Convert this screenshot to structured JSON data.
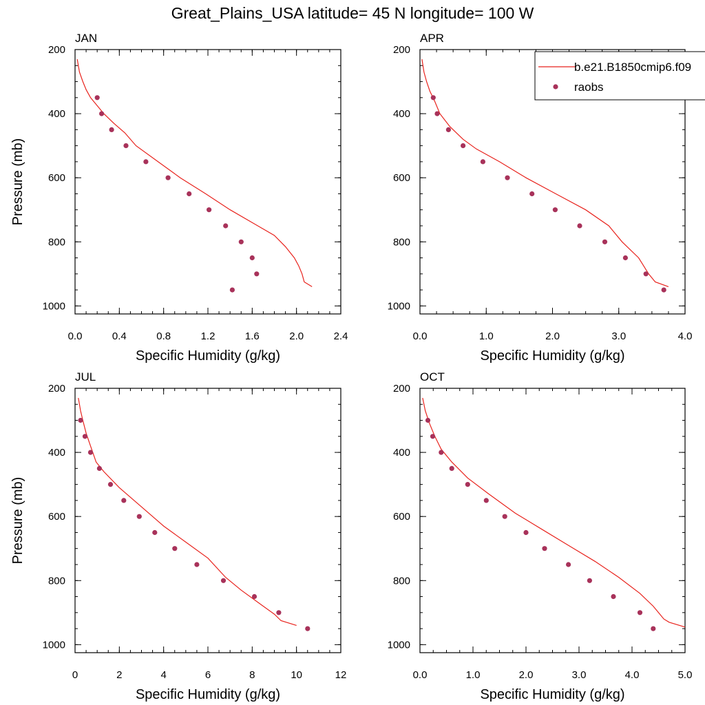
{
  "figure": {
    "title": "Great_Plains_USA  latitude= 45 N longitude= 100 W"
  },
  "legend": {
    "model_label": "b.e21.B1850cmip6.f09",
    "obs_label": "raobs",
    "model_color": "#e8221c",
    "obs_color": "#a8325a"
  },
  "chart_data": [
    {
      "type": "line",
      "title": "JAN",
      "xlabel": "Specific Humidity (g/kg)",
      "ylabel": "Pressure (mb)",
      "xlim": [
        0,
        2.4
      ],
      "ylim": [
        1025,
        200
      ],
      "y_reversed": true,
      "xticks": [
        0,
        0.4,
        0.8,
        1.2,
        1.6,
        2.0,
        2.4
      ],
      "xtick_labels": [
        "0.0",
        "0.4",
        "0.8",
        "1.2",
        "1.6",
        "2.0",
        "2.4"
      ],
      "yticks": [
        200,
        400,
        600,
        800,
        1000
      ],
      "series": [
        {
          "name": "b.e21.B1850cmip6.f09",
          "kind": "line",
          "points": [
            [
              0.02,
              230
            ],
            [
              0.04,
              270
            ],
            [
              0.07,
              300
            ],
            [
              0.1,
              325
            ],
            [
              0.14,
              350
            ],
            [
              0.2,
              375
            ],
            [
              0.26,
              400
            ],
            [
              0.35,
              430
            ],
            [
              0.45,
              460
            ],
            [
              0.55,
              500
            ],
            [
              0.75,
              550
            ],
            [
              0.95,
              600
            ],
            [
              1.18,
              650
            ],
            [
              1.4,
              700
            ],
            [
              1.65,
              750
            ],
            [
              1.8,
              780
            ],
            [
              1.9,
              815
            ],
            [
              1.98,
              850
            ],
            [
              2.02,
              875
            ],
            [
              2.05,
              900
            ],
            [
              2.07,
              925
            ],
            [
              2.14,
              940
            ]
          ]
        },
        {
          "name": "raobs",
          "kind": "scatter",
          "points": [
            [
              0.2,
              350
            ],
            [
              0.24,
              400
            ],
            [
              0.33,
              450
            ],
            [
              0.46,
              500
            ],
            [
              0.64,
              550
            ],
            [
              0.84,
              600
            ],
            [
              1.03,
              650
            ],
            [
              1.21,
              700
            ],
            [
              1.36,
              750
            ],
            [
              1.5,
              800
            ],
            [
              1.6,
              850
            ],
            [
              1.64,
              900
            ],
            [
              1.42,
              950
            ]
          ]
        }
      ]
    },
    {
      "type": "line",
      "title": "APR",
      "xlabel": "Specific Humidity (g/kg)",
      "ylabel": "",
      "xlim": [
        0,
        4.0
      ],
      "ylim": [
        1025,
        200
      ],
      "y_reversed": true,
      "xticks": [
        0,
        1.0,
        2.0,
        3.0,
        4.0
      ],
      "xtick_labels": [
        "0.0",
        "1.0",
        "2.0",
        "3.0",
        "4.0"
      ],
      "yticks": [
        200,
        400,
        600,
        800,
        1000
      ],
      "series": [
        {
          "name": "b.e21.B1850cmip6.f09",
          "kind": "line",
          "points": [
            [
              0.03,
              230
            ],
            [
              0.06,
              270
            ],
            [
              0.1,
              300
            ],
            [
              0.15,
              330
            ],
            [
              0.22,
              360
            ],
            [
              0.3,
              400
            ],
            [
              0.45,
              440
            ],
            [
              0.65,
              480
            ],
            [
              0.85,
              510
            ],
            [
              1.2,
              550
            ],
            [
              1.6,
              600
            ],
            [
              2.05,
              650
            ],
            [
              2.5,
              700
            ],
            [
              2.85,
              750
            ],
            [
              3.05,
              800
            ],
            [
              3.3,
              850
            ],
            [
              3.45,
              900
            ],
            [
              3.55,
              925
            ],
            [
              3.75,
              940
            ]
          ]
        },
        {
          "name": "raobs",
          "kind": "scatter",
          "points": [
            [
              0.2,
              350
            ],
            [
              0.26,
              400
            ],
            [
              0.43,
              450
            ],
            [
              0.65,
              500
            ],
            [
              0.95,
              550
            ],
            [
              1.32,
              600
            ],
            [
              1.69,
              650
            ],
            [
              2.04,
              700
            ],
            [
              2.41,
              750
            ],
            [
              2.79,
              800
            ],
            [
              3.1,
              850
            ],
            [
              3.41,
              900
            ],
            [
              3.68,
              950
            ]
          ]
        }
      ]
    },
    {
      "type": "line",
      "title": "JUL",
      "xlabel": "Specific Humidity (g/kg)",
      "ylabel": "Pressure (mb)",
      "xlim": [
        0,
        12
      ],
      "ylim": [
        1025,
        200
      ],
      "y_reversed": true,
      "xticks": [
        0,
        2,
        4,
        6,
        8,
        10,
        12
      ],
      "xtick_labels": [
        "0",
        "2",
        "4",
        "6",
        "8",
        "10",
        "12"
      ],
      "yticks": [
        200,
        400,
        600,
        800,
        1000
      ],
      "series": [
        {
          "name": "b.e21.B1850cmip6.f09",
          "kind": "line",
          "points": [
            [
              0.15,
              230
            ],
            [
              0.25,
              270
            ],
            [
              0.35,
              300
            ],
            [
              0.5,
              340
            ],
            [
              0.7,
              380
            ],
            [
              0.95,
              430
            ],
            [
              1.3,
              460
            ],
            [
              2.0,
              510
            ],
            [
              3.0,
              570
            ],
            [
              4.0,
              630
            ],
            [
              5.0,
              680
            ],
            [
              6.0,
              730
            ],
            [
              6.8,
              790
            ],
            [
              7.5,
              830
            ],
            [
              8.3,
              870
            ],
            [
              9.0,
              905
            ],
            [
              9.3,
              925
            ],
            [
              10.0,
              940
            ]
          ]
        },
        {
          "name": "raobs",
          "kind": "scatter",
          "points": [
            [
              0.25,
              300
            ],
            [
              0.45,
              350
            ],
            [
              0.7,
              400
            ],
            [
              1.1,
              450
            ],
            [
              1.6,
              500
            ],
            [
              2.2,
              550
            ],
            [
              2.9,
              600
            ],
            [
              3.6,
              650
            ],
            [
              4.5,
              700
            ],
            [
              5.5,
              750
            ],
            [
              6.7,
              800
            ],
            [
              8.1,
              850
            ],
            [
              9.2,
              900
            ],
            [
              10.5,
              950
            ]
          ]
        }
      ]
    },
    {
      "type": "line",
      "title": "OCT",
      "xlabel": "Specific Humidity (g/kg)",
      "ylabel": "",
      "xlim": [
        0,
        5.0
      ],
      "ylim": [
        1025,
        200
      ],
      "y_reversed": true,
      "xticks": [
        0,
        1.0,
        2.0,
        3.0,
        4.0,
        5.0
      ],
      "xtick_labels": [
        "0.0",
        "1.0",
        "2.0",
        "3.0",
        "4.0",
        "5.0"
      ],
      "yticks": [
        200,
        400,
        600,
        800,
        1000
      ],
      "series": [
        {
          "name": "b.e21.B1850cmip6.f09",
          "kind": "line",
          "points": [
            [
              0.05,
              230
            ],
            [
              0.1,
              270
            ],
            [
              0.18,
              310
            ],
            [
              0.28,
              350
            ],
            [
              0.4,
              390
            ],
            [
              0.6,
              430
            ],
            [
              0.9,
              480
            ],
            [
              1.3,
              530
            ],
            [
              1.8,
              590
            ],
            [
              2.3,
              640
            ],
            [
              2.8,
              690
            ],
            [
              3.3,
              740
            ],
            [
              3.75,
              790
            ],
            [
              4.15,
              840
            ],
            [
              4.4,
              880
            ],
            [
              4.6,
              920
            ],
            [
              4.7,
              930
            ],
            [
              5.0,
              945
            ]
          ]
        },
        {
          "name": "raobs",
          "kind": "scatter",
          "points": [
            [
              0.15,
              300
            ],
            [
              0.24,
              350
            ],
            [
              0.4,
              400
            ],
            [
              0.6,
              450
            ],
            [
              0.9,
              500
            ],
            [
              1.25,
              550
            ],
            [
              1.6,
              600
            ],
            [
              2.0,
              650
            ],
            [
              2.35,
              700
            ],
            [
              2.8,
              750
            ],
            [
              3.2,
              800
            ],
            [
              3.65,
              850
            ],
            [
              4.15,
              900
            ],
            [
              4.4,
              950
            ]
          ]
        }
      ]
    }
  ]
}
